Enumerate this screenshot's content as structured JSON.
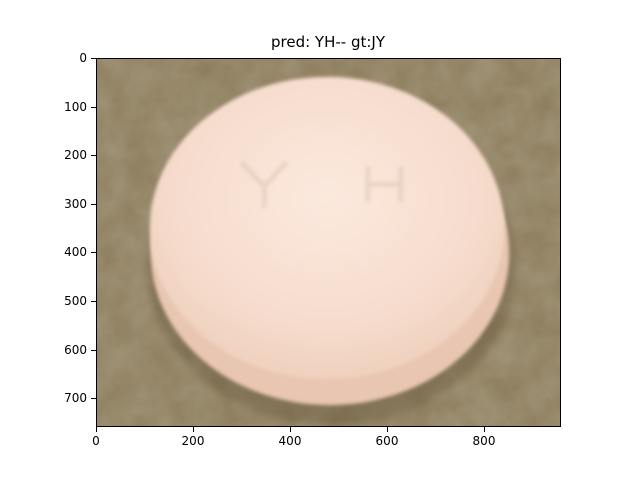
{
  "figure": {
    "title": "pred: YH-- gt:JY"
  },
  "image": {
    "description_icon": "pill-photo",
    "background_color": "#8a7a5a",
    "pill_color": "#f6dccd",
    "pill_edge_color": "#e9c6b0",
    "pill_imprint": "Y H"
  },
  "axes": {
    "xlim": [
      0,
      960
    ],
    "ylim": [
      760,
      0
    ],
    "xticks": [
      0,
      200,
      400,
      600,
      800
    ],
    "yticks": [
      0,
      100,
      200,
      300,
      400,
      500,
      600,
      700
    ]
  }
}
